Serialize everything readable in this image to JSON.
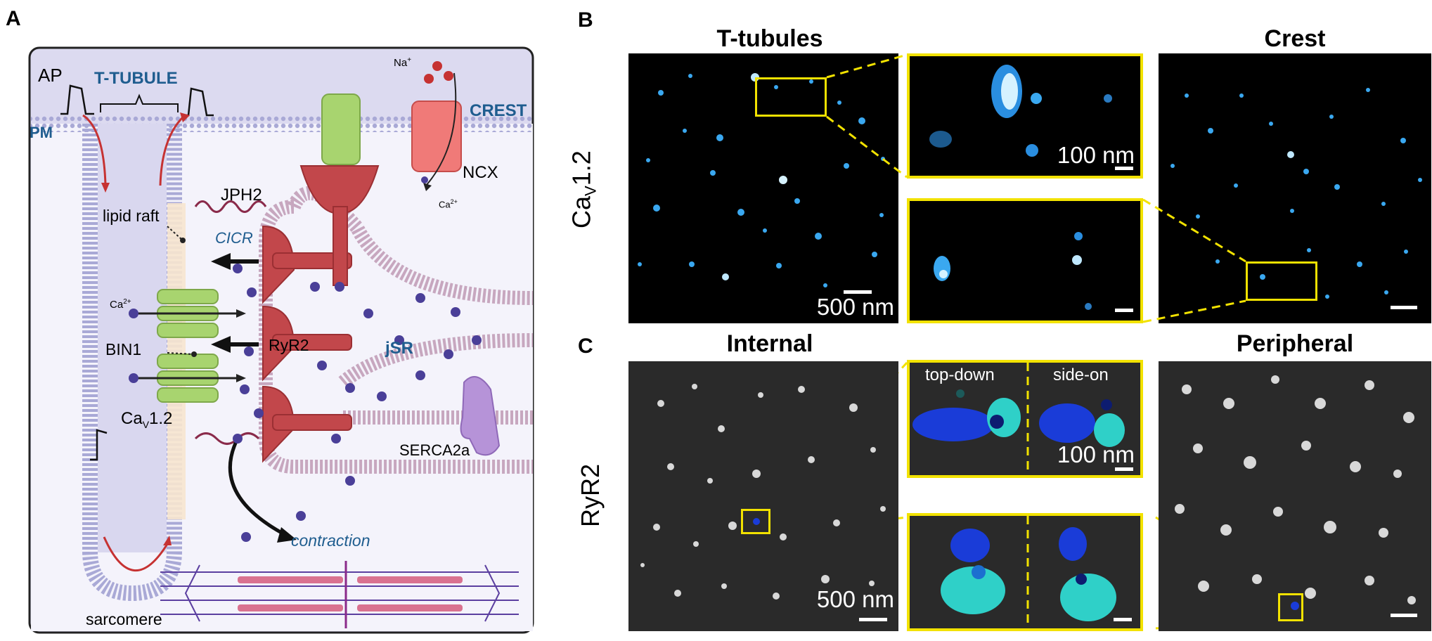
{
  "panels": {
    "A": {
      "label": "A",
      "texts": {
        "ap": "AP",
        "t_tubule": "T-TUBULE",
        "pm": "PM",
        "crest": "CREST",
        "na": "Na",
        "na_sup": "+",
        "ncx": "NCX",
        "ca_ion": "Ca",
        "ca_sup": "2+",
        "jph2": "JPH2",
        "lipid_raft": "lipid raft",
        "cicr": "CICR",
        "ca_left": "Ca",
        "bin1": "BIN1",
        "ryr2": "RyR2",
        "jsr": "jSR",
        "cav12_a": "Ca",
        "cav12_sub": "V",
        "cav12_b": "1.2",
        "serca": "SERCA2a",
        "contraction": "contraction",
        "sarcomere": "sarcomere"
      }
    },
    "B": {
      "label": "B",
      "title_left": "T-tubules",
      "title_right": "Crest",
      "row_label_main": "Ca",
      "row_label_sub": "V",
      "row_label_tail": "1.2",
      "scale_main": "500 nm",
      "scale_zoom": "100 nm"
    },
    "C": {
      "label": "C",
      "title_left": "Internal",
      "title_right": "Peripheral",
      "row_label": "RyR2",
      "view_topdown": "top-down",
      "view_sideon": "side-on",
      "scale_main": "500 nm",
      "scale_zoom": "100 nm"
    }
  },
  "colors": {
    "highlight": "#f2e200",
    "membrane": "#a9a9d6",
    "cell_bg": "#dcdaf0",
    "ryr": "#c2474b",
    "cav": "#a8d46f",
    "ncx": "#f07a78",
    "serca": "#b693d8",
    "text_blue": "#1f5d8f"
  }
}
